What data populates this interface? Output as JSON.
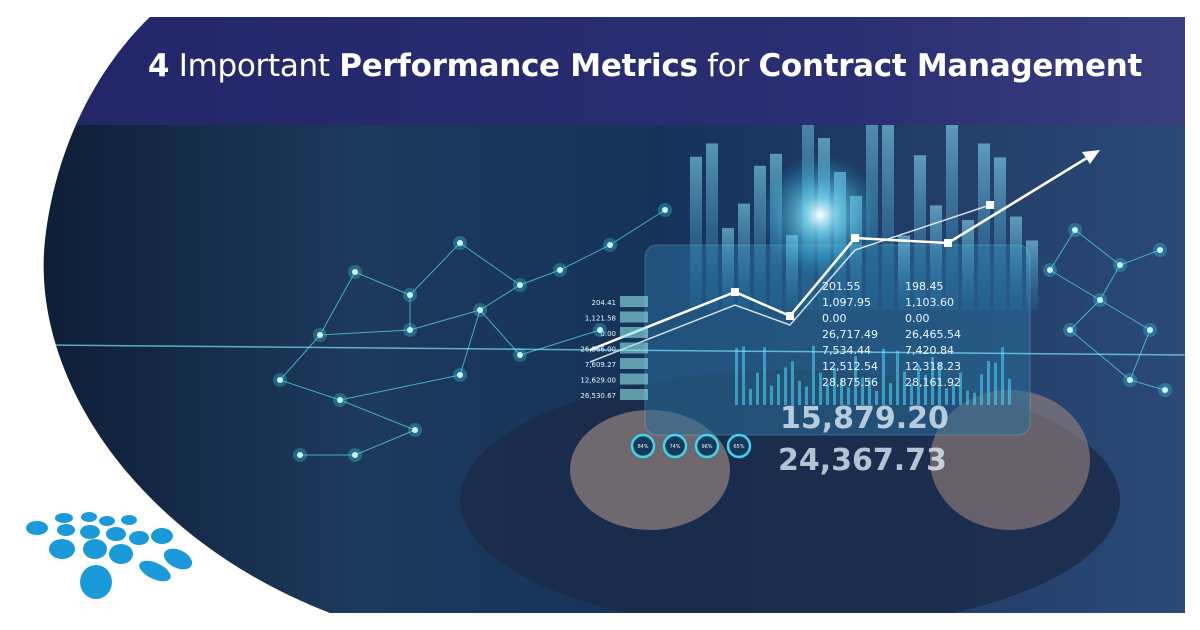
{
  "title": {
    "part1": "4",
    "part2": " Important ",
    "part3": "Performance Metrics",
    "part4": " for ",
    "part5": "Contract Management"
  },
  "colors": {
    "banner": "#24276b",
    "logo": "#1a9ad8",
    "glow": "#3fd6f0"
  },
  "graphic": {
    "left_values": [
      "204.41",
      "1,121.58",
      "0.00",
      "26,566.00",
      "7,609.27",
      "12,629.00",
      "26,530.67"
    ],
    "col1": [
      "201.55",
      "1,097.95",
      "0.00",
      "26,717.49",
      "7,534.44",
      "12,512.54",
      "28,875.56"
    ],
    "col2": [
      "198.45",
      "1,103.60",
      "0.00",
      "26,465.54",
      "7,420.84",
      "12,318.23",
      "28,161.92"
    ],
    "big1": "15,879.20",
    "big2": "24,367.73",
    "gauges": [
      "84%",
      "74%",
      "96%",
      "65%"
    ]
  },
  "logo": {
    "icon": "dot-cluster-logo"
  }
}
